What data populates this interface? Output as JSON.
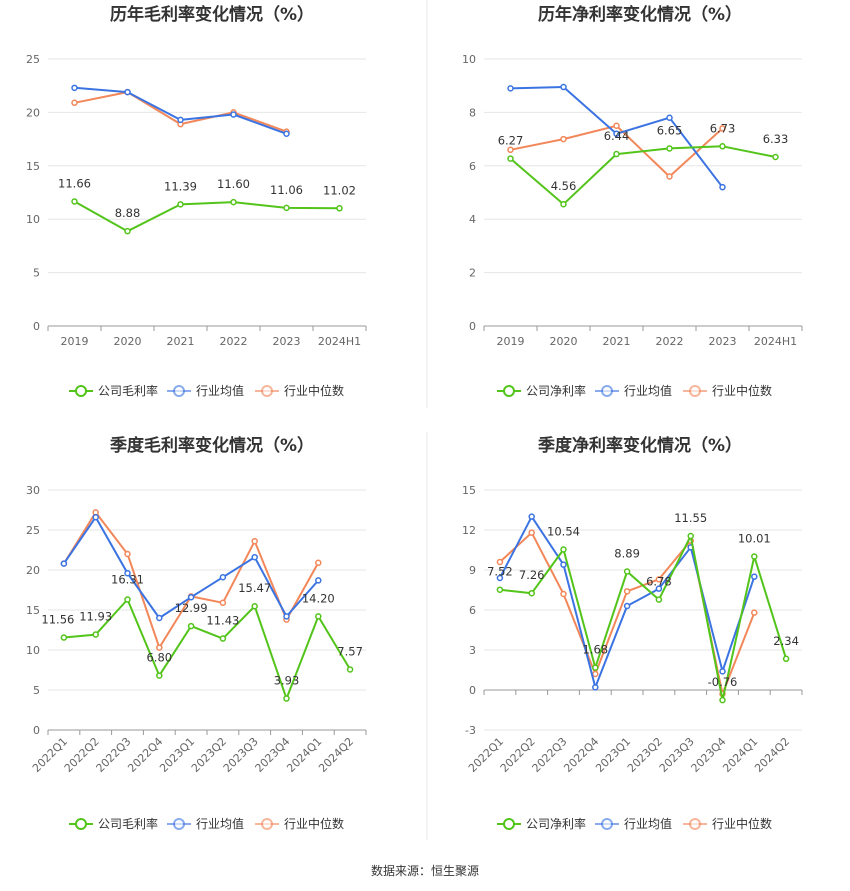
{
  "colors": {
    "company": "#52c41a",
    "industry_avg": "#3b74e2",
    "industry_median": "#f2875a",
    "grid": "#e6e6e6",
    "axis": "#999999",
    "divider": "#e8e8e8"
  },
  "legend": {
    "gross_company": "公司毛利率",
    "net_company": "公司净利率",
    "industry_avg": "行业均值",
    "industry_median": "行业中位数"
  },
  "source": "数据来源：恒生聚源",
  "chart_data": [
    {
      "id": "annual-gross",
      "type": "line",
      "title": "历年毛利率变化情况（%）",
      "categories": [
        "2019",
        "2020",
        "2021",
        "2022",
        "2023",
        "2024H1"
      ],
      "ylim": [
        0,
        25
      ],
      "yticks": [
        0,
        5,
        10,
        15,
        20,
        25
      ],
      "grid": true,
      "legend_position": "bottom",
      "series": [
        {
          "key": "company",
          "name": "公司毛利率",
          "values": [
            11.66,
            8.88,
            11.39,
            11.6,
            11.06,
            11.02
          ],
          "labels": [
            "11.66",
            "8.88",
            "11.39",
            "11.60",
            "11.06",
            "11.02"
          ]
        },
        {
          "key": "industry_avg",
          "name": "行业均值",
          "values": [
            22.3,
            21.9,
            19.3,
            19.8,
            18.0,
            null
          ]
        },
        {
          "key": "industry_median",
          "name": "行业中位数",
          "values": [
            20.9,
            21.9,
            18.9,
            20.0,
            18.2,
            null
          ]
        }
      ]
    },
    {
      "id": "annual-net",
      "type": "line",
      "title": "历年净利率变化情况（%）",
      "categories": [
        "2019",
        "2020",
        "2021",
        "2022",
        "2023",
        "2024H1"
      ],
      "ylim": [
        0,
        10
      ],
      "yticks": [
        0,
        2,
        4,
        6,
        8,
        10
      ],
      "grid": true,
      "legend_position": "bottom",
      "series": [
        {
          "key": "company",
          "name": "公司净利率",
          "values": [
            6.27,
            4.56,
            6.44,
            6.65,
            6.73,
            6.33
          ],
          "labels": [
            "6.27",
            "4.56",
            "6.44",
            "6.65",
            "6.73",
            "6.33"
          ]
        },
        {
          "key": "industry_avg",
          "name": "行业均值",
          "values": [
            8.9,
            8.95,
            7.2,
            7.8,
            5.2,
            null
          ]
        },
        {
          "key": "industry_median",
          "name": "行业中位数",
          "values": [
            6.6,
            7.0,
            7.5,
            5.6,
            7.4,
            null
          ]
        }
      ]
    },
    {
      "id": "quarterly-gross",
      "type": "line",
      "title": "季度毛利率变化情况（%）",
      "categories": [
        "2022Q1",
        "2022Q2",
        "2022Q3",
        "2022Q4",
        "2023Q1",
        "2023Q2",
        "2023Q3",
        "2023Q4",
        "2024Q1",
        "2024Q2"
      ],
      "ylim": [
        0,
        30
      ],
      "yticks": [
        0,
        5,
        10,
        15,
        20,
        25,
        30
      ],
      "grid": true,
      "legend_position": "bottom",
      "series": [
        {
          "key": "company",
          "name": "公司毛利率",
          "values": [
            11.56,
            11.93,
            16.31,
            6.8,
            12.99,
            11.43,
            15.47,
            3.93,
            14.2,
            7.57
          ],
          "labels": [
            "11.56",
            "11.93",
            "16.31",
            "6.80",
            "12.99",
            "11.43",
            "15.47",
            "3.93",
            "14.20",
            "7.57"
          ]
        },
        {
          "key": "industry_avg",
          "name": "行业均值",
          "values": [
            20.8,
            26.6,
            19.6,
            14.0,
            16.6,
            19.1,
            21.6,
            14.2,
            18.7,
            null
          ]
        },
        {
          "key": "industry_median",
          "name": "行业中位数",
          "values": [
            20.8,
            27.2,
            22.0,
            10.3,
            16.7,
            15.9,
            23.6,
            13.8,
            20.9,
            null
          ]
        }
      ]
    },
    {
      "id": "quarterly-net",
      "type": "line",
      "title": "季度净利率变化情况（%）",
      "categories": [
        "2022Q1",
        "2022Q2",
        "2022Q3",
        "2022Q4",
        "2023Q1",
        "2023Q2",
        "2023Q3",
        "2023Q4",
        "2024Q1",
        "2024Q2"
      ],
      "ylim": [
        -3,
        15
      ],
      "yticks": [
        -3,
        0,
        3,
        6,
        9,
        12,
        15
      ],
      "grid": true,
      "legend_position": "bottom",
      "series": [
        {
          "key": "company",
          "name": "公司净利率",
          "values": [
            7.52,
            7.26,
            10.54,
            1.68,
            8.89,
            6.78,
            11.55,
            -0.76,
            10.01,
            2.34
          ],
          "labels": [
            "7.52",
            "7.26",
            "10.54",
            "1.68",
            "8.89",
            "6.78",
            "11.55",
            "-0.76",
            "10.01",
            "2.34"
          ]
        },
        {
          "key": "industry_avg",
          "name": "行业均值",
          "values": [
            8.4,
            13.0,
            9.4,
            0.2,
            6.3,
            7.6,
            10.7,
            1.4,
            8.5,
            null
          ]
        },
        {
          "key": "industry_median",
          "name": "行业中位数",
          "values": [
            9.6,
            11.8,
            7.2,
            1.2,
            7.4,
            8.3,
            11.2,
            -0.3,
            5.8,
            null
          ]
        }
      ]
    }
  ]
}
